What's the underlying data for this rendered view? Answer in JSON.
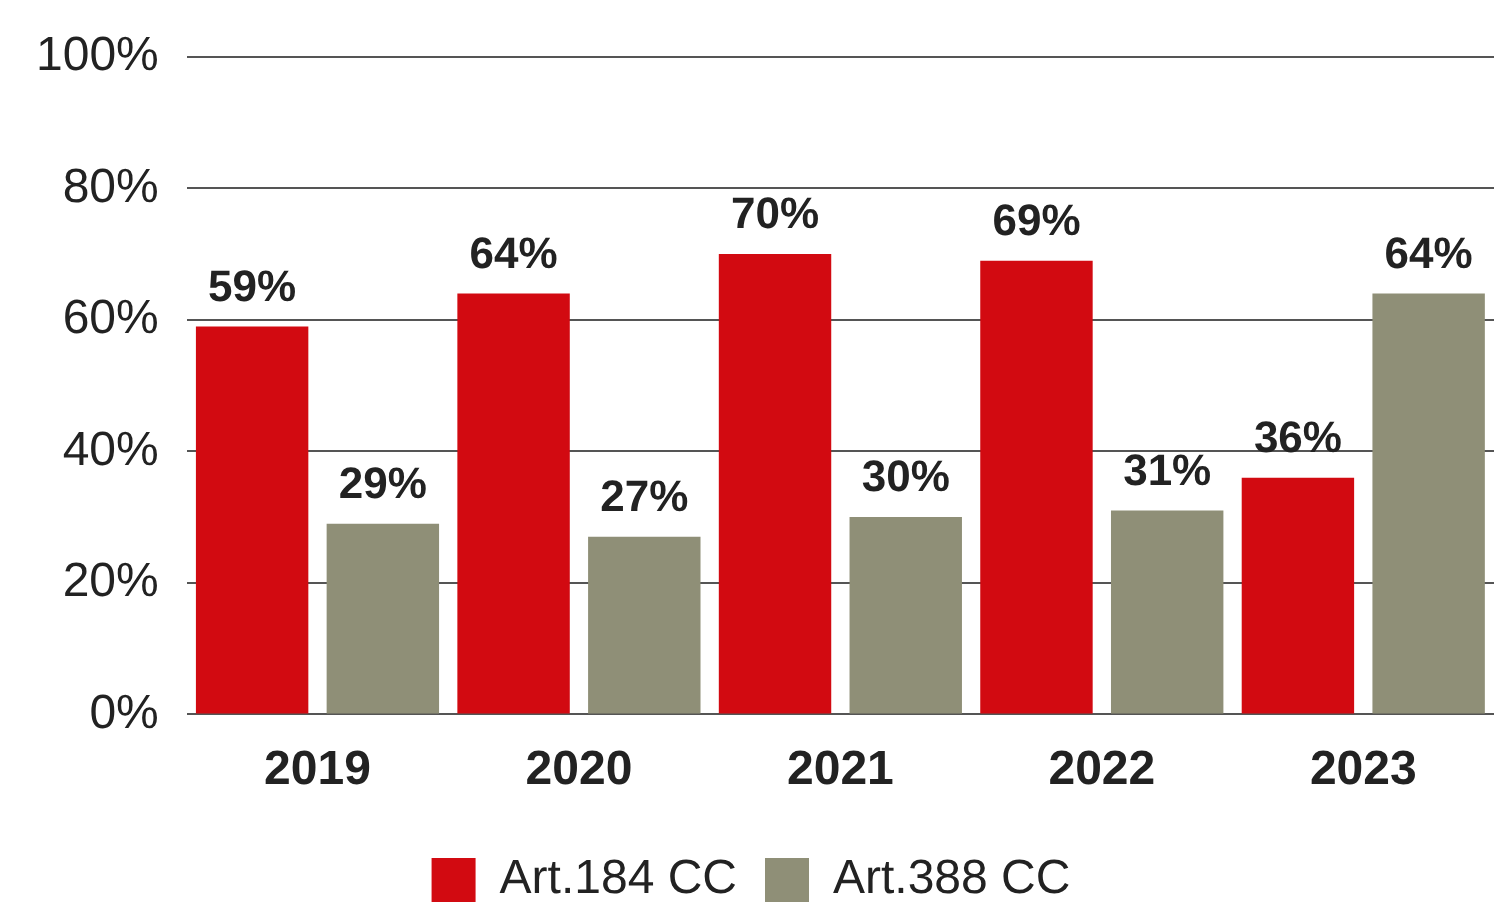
{
  "chart_data": {
    "type": "bar",
    "categories": [
      "2019",
      "2020",
      "2021",
      "2022",
      "2023"
    ],
    "series": [
      {
        "name": "Art.184 CC",
        "color": "#d20a11",
        "values": [
          59,
          64,
          70,
          69,
          36
        ],
        "value_labels": [
          "59%",
          "64%",
          "70%",
          "69%",
          "36%"
        ]
      },
      {
        "name": "Art.388 CC",
        "color": "#8f8f77",
        "values": [
          29,
          27,
          30,
          31,
          64
        ],
        "value_labels": [
          "29%",
          "27%",
          "30%",
          "31%",
          "64%"
        ]
      }
    ],
    "ylim": [
      0,
      100
    ],
    "yticks": [
      {
        "value": 0,
        "label": "0%"
      },
      {
        "value": 20,
        "label": "20%"
      },
      {
        "value": 40,
        "label": "40%"
      },
      {
        "value": 60,
        "label": "60%"
      },
      {
        "value": 80,
        "label": "80%"
      },
      {
        "value": 100,
        "label": "100%"
      }
    ],
    "grid": "y",
    "legend": "bottom"
  }
}
